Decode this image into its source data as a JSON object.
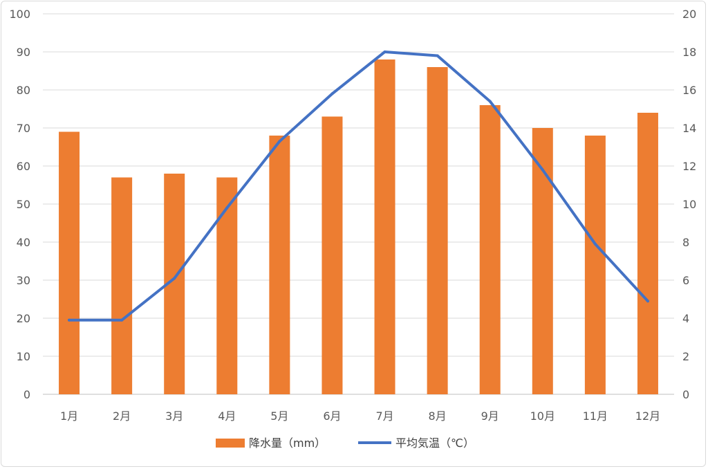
{
  "chart_data": {
    "type": "bar",
    "categories": [
      "1月",
      "2月",
      "3月",
      "4月",
      "5月",
      "6月",
      "7月",
      "8月",
      "9月",
      "10月",
      "11月",
      "12月"
    ],
    "series": [
      {
        "name": "降水量（mm）",
        "type": "bar",
        "axis": "left",
        "color": "#ED7D31",
        "values": [
          69,
          57,
          58,
          57,
          68,
          73,
          88,
          86,
          76,
          70,
          68,
          74
        ]
      },
      {
        "name": "平均気温（℃）",
        "type": "line",
        "axis": "right",
        "color": "#4472C4",
        "values": [
          3.9,
          3.9,
          6.1,
          9.8,
          13.3,
          15.8,
          18.0,
          17.8,
          15.4,
          11.8,
          7.9,
          4.9
        ]
      }
    ],
    "ylim_left": [
      0,
      100
    ],
    "yticks_left": [
      "0",
      "10",
      "20",
      "30",
      "40",
      "50",
      "60",
      "70",
      "80",
      "90",
      "100"
    ],
    "ylim_right": [
      0,
      20
    ],
    "yticks_right": [
      "0",
      "2",
      "4",
      "6",
      "8",
      "10",
      "12",
      "14",
      "16",
      "18",
      "20"
    ],
    "grid": true,
    "legend_position": "bottom"
  }
}
